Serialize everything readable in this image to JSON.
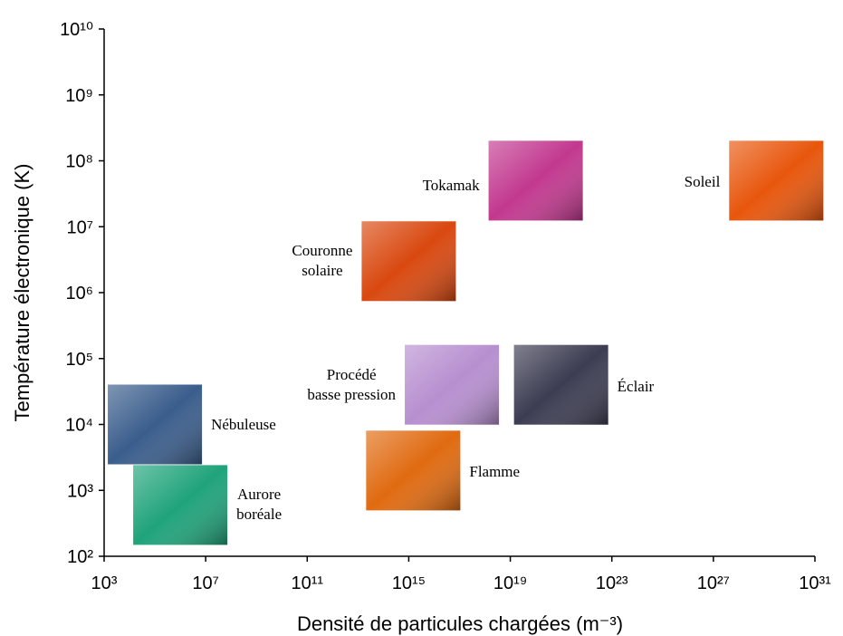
{
  "chart_data": {
    "type": "scatter",
    "xlabel": "Densité de particules chargées (m⁻³)",
    "ylabel": "Température électronique (K)",
    "log_x": true,
    "log_y": true,
    "xlim": [
      1000.0,
      1e+31
    ],
    "ylim": [
      100.0,
      10000000000.0
    ],
    "xticks": [
      {
        "value": 1000.0,
        "label": "10³"
      },
      {
        "value": 10000000.0,
        "label": "10⁷"
      },
      {
        "value": 100000000000.0,
        "label": "10¹¹"
      },
      {
        "value": 1000000000000000.0,
        "label": "10¹⁵"
      },
      {
        "value": 1e+19,
        "label": "10¹⁹"
      },
      {
        "value": 1e+23,
        "label": "10²³"
      },
      {
        "value": 1e+27,
        "label": "10²⁷"
      },
      {
        "value": 1e+31,
        "label": "10³¹"
      }
    ],
    "yticks": [
      {
        "value": 100.0,
        "label": "10²"
      },
      {
        "value": 1000.0,
        "label": "10³"
      },
      {
        "value": 10000.0,
        "label": "10⁴"
      },
      {
        "value": 100000.0,
        "label": "10⁵"
      },
      {
        "value": 1000000.0,
        "label": "10⁶"
      },
      {
        "value": 10000000.0,
        "label": "10⁷"
      },
      {
        "value": 100000000.0,
        "label": "10⁸"
      },
      {
        "value": 1000000000.0,
        "label": "10⁹"
      },
      {
        "value": 10000000000.0,
        "label": "10¹⁰"
      }
    ],
    "labels": [
      "Nébuleuse",
      "Aurore\nboréale",
      "Couronne\nsolaire",
      "Tokamak",
      "Soleil",
      "Procédé\nbasse pression",
      "Éclair",
      "Flamme"
    ],
    "x": [
      100000.0,
      1000000.0,
      1000000000000000.0,
      1e+20,
      3e+29,
      5e+16,
      1e+21,
      1500000000000000.0
    ],
    "values": [
      10000.0,
      600,
      3000000.0,
      50000000.0,
      50000000.0,
      40000.0,
      40000.0,
      2000
    ],
    "colors": [
      "#3a5d8c",
      "#1fa37a",
      "#d9480f",
      "#c2388f",
      "#e8560c",
      "#b78fd0",
      "#3c3c52",
      "#e06a10"
    ]
  }
}
